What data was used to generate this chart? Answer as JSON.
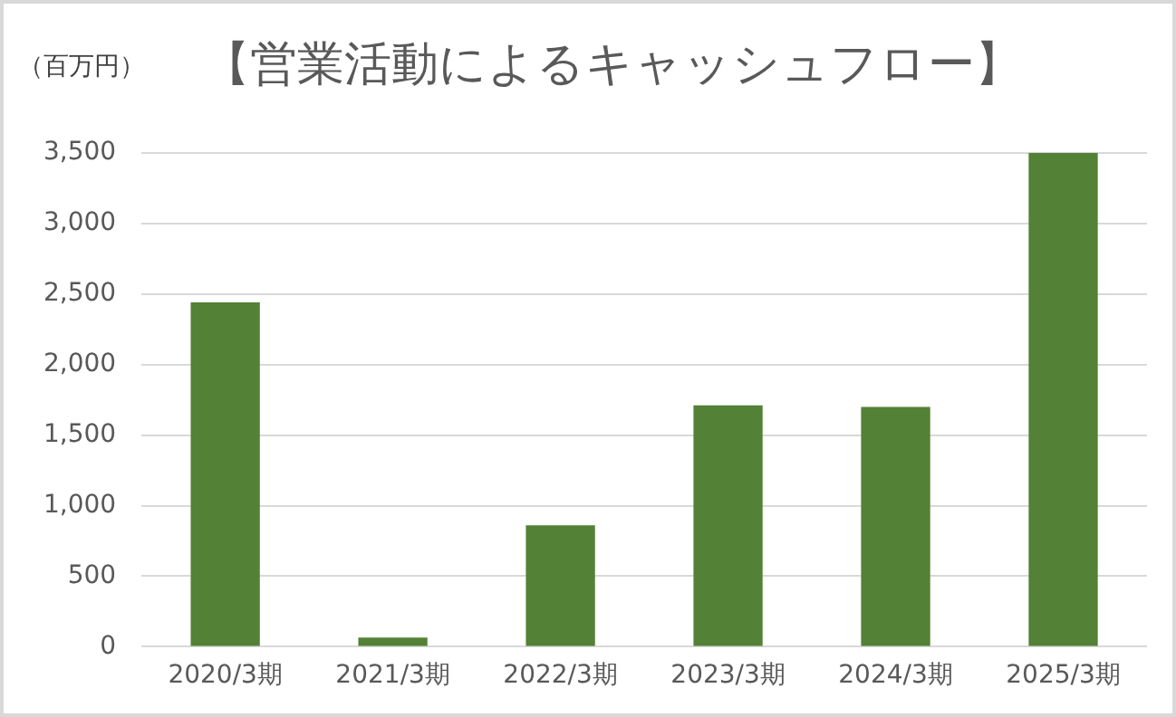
{
  "chart_data": {
    "type": "bar",
    "title": "【営業活動によるキャッシュフロー】",
    "ylabel": "（百万円）",
    "categories": [
      "2020/3期",
      "2021/3期",
      "2022/3期",
      "2023/3期",
      "2024/3期",
      "2025/3期"
    ],
    "values": [
      2440,
      65,
      860,
      1710,
      1700,
      3500
    ],
    "color": "#538135",
    "ylim": [
      0,
      3500
    ],
    "yticks": [
      {
        "value": 0,
        "label": "0"
      },
      {
        "value": 500,
        "label": "500"
      },
      {
        "value": 1000,
        "label": "1,000"
      },
      {
        "value": 1500,
        "label": "1,500"
      },
      {
        "value": 2000,
        "label": "2,000"
      },
      {
        "value": 2500,
        "label": "2,500"
      },
      {
        "value": 3000,
        "label": "3,000"
      },
      {
        "value": 3500,
        "label": "3,500"
      }
    ],
    "grid": "y",
    "legend": false
  }
}
